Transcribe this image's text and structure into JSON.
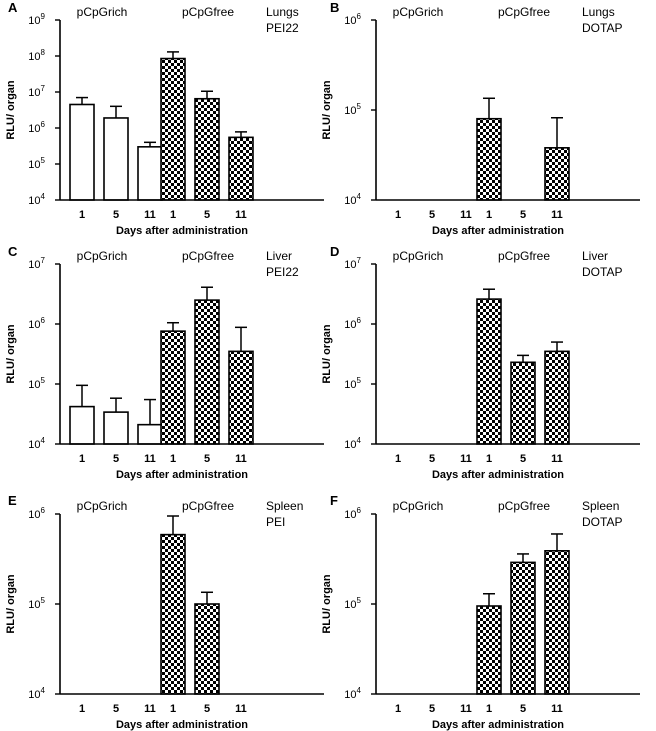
{
  "chart_data": [
    {
      "panel": "A",
      "type": "bar",
      "yscale": "log",
      "ylim": [
        10000,
        1000000000
      ],
      "yticks": [
        {
          "v": 10000,
          "b": "10",
          "e": "4"
        },
        {
          "v": 100000,
          "b": "10",
          "e": "5"
        },
        {
          "v": 1000000,
          "b": "10",
          "e": "6"
        },
        {
          "v": 10000000,
          "b": "10",
          "e": "7"
        },
        {
          "v": 100000000,
          "b": "10",
          "e": "8"
        },
        {
          "v": 1000000000,
          "b": "10",
          "e": "9"
        }
      ],
      "ylabel": "RLU/ organ",
      "xlabel": "Days after administration",
      "group_labels": [
        "pCpGrich",
        "pCpGfree"
      ],
      "annotation": [
        "Lungs",
        "PEI22"
      ],
      "categories": [
        "1",
        "5",
        "11"
      ],
      "series": [
        {
          "name": "pCpGrich",
          "pattern": "open",
          "values": [
            4500000,
            1900000,
            300000
          ],
          "err_upper": [
            7000000,
            4000000,
            400000
          ]
        },
        {
          "name": "pCpGfree",
          "pattern": "checkered",
          "values": [
            85000000,
            6500000,
            550000
          ],
          "err_upper": [
            130000000,
            10500000,
            780000
          ]
        }
      ]
    },
    {
      "panel": "B",
      "type": "bar",
      "yscale": "log",
      "ylim": [
        10000,
        1000000
      ],
      "yticks": [
        {
          "v": 10000,
          "b": "10",
          "e": "4"
        },
        {
          "v": 100000,
          "b": "10",
          "e": "5"
        },
        {
          "v": 1000000,
          "b": "10",
          "e": "6"
        }
      ],
      "ylabel": "RLU/ organ",
      "xlabel": "Days after administration",
      "group_labels": [
        "pCpGrich",
        "pCpGfree"
      ],
      "annotation": [
        "Lungs",
        "DOTAP"
      ],
      "categories": [
        "1",
        "5",
        "11"
      ],
      "series": [
        {
          "name": "pCpGrich",
          "pattern": "open",
          "values": [
            null,
            null,
            null
          ],
          "err_upper": [
            null,
            null,
            null
          ]
        },
        {
          "name": "pCpGfree",
          "pattern": "checkered",
          "values": [
            80000,
            null,
            38000
          ],
          "err_upper": [
            135000,
            null,
            82000
          ]
        }
      ]
    },
    {
      "panel": "C",
      "type": "bar",
      "yscale": "log",
      "ylim": [
        10000,
        10000000
      ],
      "yticks": [
        {
          "v": 10000,
          "b": "10",
          "e": "4"
        },
        {
          "v": 100000,
          "b": "10",
          "e": "5"
        },
        {
          "v": 1000000,
          "b": "10",
          "e": "6"
        },
        {
          "v": 10000000,
          "b": "10",
          "e": "7"
        }
      ],
      "ylabel": "RLU/ organ",
      "xlabel": "Days after administration",
      "group_labels": [
        "pCpGrich",
        "pCpGfree"
      ],
      "annotation": [
        "Liver",
        "PEI22"
      ],
      "categories": [
        "1",
        "5",
        "11"
      ],
      "series": [
        {
          "name": "pCpGrich",
          "pattern": "open",
          "values": [
            42000,
            34000,
            21000
          ],
          "err_upper": [
            95000,
            58000,
            55000
          ]
        },
        {
          "name": "pCpGfree",
          "pattern": "checkered",
          "values": [
            760000,
            2500000,
            350000
          ],
          "err_upper": [
            1050000,
            4100000,
            880000
          ]
        }
      ]
    },
    {
      "panel": "D",
      "type": "bar",
      "yscale": "log",
      "ylim": [
        10000,
        10000000
      ],
      "yticks": [
        {
          "v": 10000,
          "b": "10",
          "e": "4"
        },
        {
          "v": 100000,
          "b": "10",
          "e": "5"
        },
        {
          "v": 1000000,
          "b": "10",
          "e": "6"
        },
        {
          "v": 10000000,
          "b": "10",
          "e": "7"
        }
      ],
      "ylabel": "RLU/ organ",
      "xlabel": "Days after administration",
      "group_labels": [
        "pCpGrich",
        "pCpGfree"
      ],
      "annotation": [
        "Liver",
        "DOTAP"
      ],
      "categories": [
        "1",
        "5",
        "11"
      ],
      "series": [
        {
          "name": "pCpGrich",
          "pattern": "open",
          "values": [
            null,
            null,
            null
          ],
          "err_upper": [
            null,
            null,
            null
          ]
        },
        {
          "name": "pCpGfree",
          "pattern": "checkered",
          "values": [
            2600000,
            230000,
            350000
          ],
          "err_upper": [
            3800000,
            300000,
            500000
          ]
        }
      ]
    },
    {
      "panel": "E",
      "type": "bar",
      "yscale": "log",
      "ylim": [
        10000,
        1000000
      ],
      "yticks": [
        {
          "v": 10000,
          "b": "10",
          "e": "4"
        },
        {
          "v": 100000,
          "b": "10",
          "e": "5"
        },
        {
          "v": 1000000,
          "b": "10",
          "e": "6"
        }
      ],
      "ylabel": "RLU/ organ",
      "xlabel": "Days after administration",
      "group_labels": [
        "pCpGrich",
        "pCpGfree"
      ],
      "annotation": [
        "Spleen",
        "PEI"
      ],
      "categories": [
        "1",
        "5",
        "11"
      ],
      "series": [
        {
          "name": "pCpGrich",
          "pattern": "open",
          "values": [
            null,
            null,
            null
          ],
          "err_upper": [
            null,
            null,
            null
          ]
        },
        {
          "name": "pCpGfree",
          "pattern": "checkered",
          "values": [
            590000,
            100000,
            null
          ],
          "err_upper": [
            950000,
            135000,
            null
          ]
        }
      ]
    },
    {
      "panel": "F",
      "type": "bar",
      "yscale": "log",
      "ylim": [
        10000,
        1000000
      ],
      "yticks": [
        {
          "v": 10000,
          "b": "10",
          "e": "4"
        },
        {
          "v": 100000,
          "b": "10",
          "e": "5"
        },
        {
          "v": 1000000,
          "b": "10",
          "e": "6"
        }
      ],
      "ylabel": "RLU/ organ",
      "xlabel": "Days after administration",
      "group_labels": [
        "pCpGrich",
        "pCpGfree"
      ],
      "annotation": [
        "Spleen",
        "DOTAP"
      ],
      "categories": [
        "1",
        "5",
        "11"
      ],
      "series": [
        {
          "name": "pCpGrich",
          "pattern": "open",
          "values": [
            null,
            null,
            null
          ],
          "err_upper": [
            null,
            null,
            null
          ]
        },
        {
          "name": "pCpGfree",
          "pattern": "checkered",
          "values": [
            95000,
            290000,
            390000
          ],
          "err_upper": [
            130000,
            360000,
            600000
          ]
        }
      ]
    }
  ]
}
